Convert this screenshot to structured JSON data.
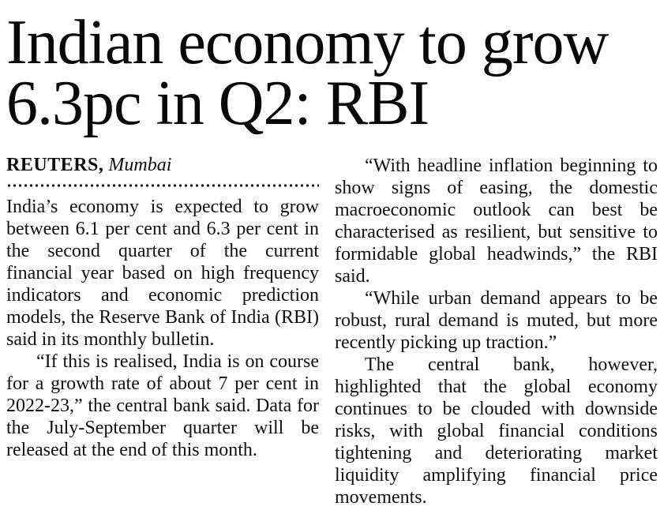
{
  "article": {
    "headline": {
      "full": "Indian economy to grow 6.3pc in Q2: RBI",
      "lines": [
        "Indian economy to grow",
        "6.3pc in Q2: RBI"
      ]
    },
    "byline": {
      "agency": "REUTERS,",
      "location": "Mumbai"
    },
    "columns": {
      "left": [
        "India’s economy is expected to grow between 6.1 per cent and 6.3 per cent in the second quarter of the current financial year based on high frequency indicators and economic prediction models, the Reserve Bank of India (RBI) said in its monthly bulletin.",
        "“If this is realised, India is on course for a growth rate of about 7 per cent in 2022-23,” the central bank said. Data for the July-September quarter will be released at the end of this month."
      ],
      "right": [
        "“With headline inflation beginning to show signs of easing, the domestic macroeconomic outlook can best be characterised as resilient, but sensitive to formidable global headwinds,” the RBI said.",
        "“While urban demand appears to be robust, rural demand is muted, but more recently picking up traction.”",
        "The central bank, however, highlighted that the global economy continues to be clouded with downside risks, with global financial conditions tightening and deteriorating market liquidity amplifying financial price movements."
      ]
    },
    "colors": {
      "text": "#0c0c0c",
      "background": "#ffffff"
    }
  }
}
